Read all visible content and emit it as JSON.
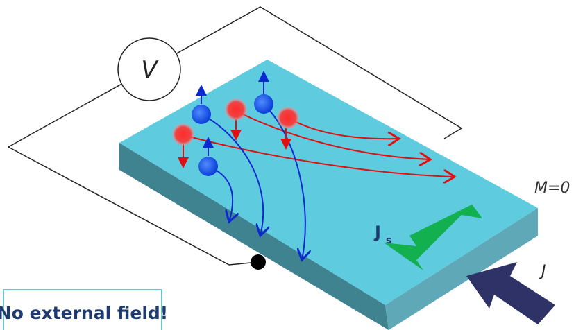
{
  "labels": {
    "voltmeter": "V",
    "magnetization": "M=0",
    "spin_current": "J",
    "spin_current_subscript": "s",
    "charge_current": "J",
    "banner": "No external field!"
  }
}
